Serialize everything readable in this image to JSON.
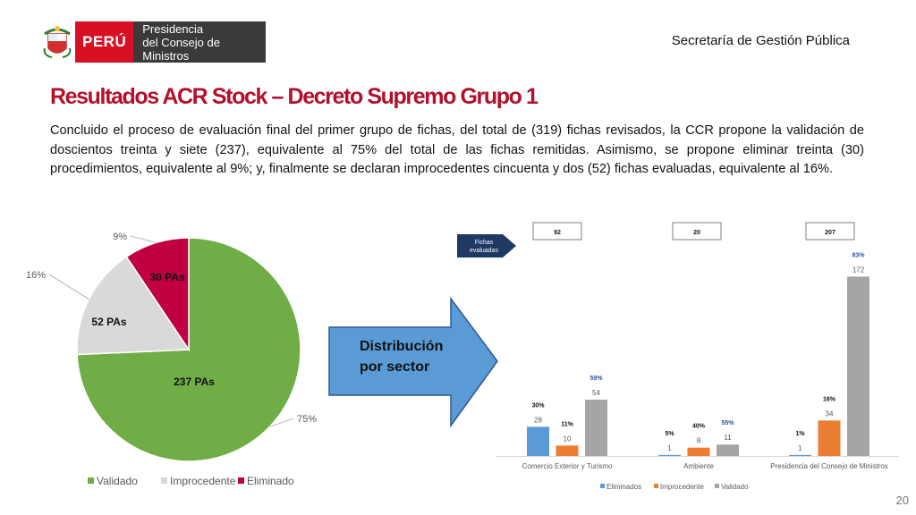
{
  "header": {
    "logo_country": "PERÚ",
    "logo_line1": "Presidencia",
    "logo_line2": "del Consejo de Ministros",
    "secretaria": "Secretaría de Gestión Pública"
  },
  "title": "Resultados ACR Stock – Decreto Supremo Grupo 1",
  "paragraph": "Concluido el proceso de evaluación final del primer grupo de fichas, del total de (319) fichas revisados, la CCR propone la validación de doscientos treinta y siete (237), equivalente al 75% del total de las fichas remitidas. Asimismo,  se  propone eliminar treinta (30) procedimientos, equivalente al 9%; y, finalmente se declaran improcedentes cincuenta y dos (52)  fichas evaluadas, equivalente al 16%.",
  "arrow_label_line1": "Distribución",
  "arrow_label_line2": "por sector",
  "page_number": "20",
  "colors": {
    "validado": "#70ad47",
    "improcedente": "#d9d9d9",
    "eliminado": "#c00040",
    "bar_eliminados": "#5b9bd5",
    "bar_improcedente": "#ed7d31",
    "bar_validado": "#a5a5a5",
    "arrow": "#5b9bd5",
    "callout": "#1f3864",
    "title": "#b2102b"
  },
  "chart_data": [
    {
      "type": "pie",
      "slices": [
        {
          "name": "Validado",
          "value": 237,
          "label": "237 PAs",
          "percent": "75%"
        },
        {
          "name": "Improcedente",
          "value": 52,
          "label": "52 PAs",
          "percent": "16%"
        },
        {
          "name": "Eliminado",
          "value": 30,
          "label": "30 PAs",
          "percent": "9%"
        }
      ],
      "legend_position": "bottom"
    },
    {
      "type": "bar",
      "categories": [
        "Comercio Exterior y Turismo",
        "Ambiente",
        "Presidencia del Consejo de Ministros"
      ],
      "totals": [
        "92",
        "20",
        "207"
      ],
      "callout": "Fichas evaluadas",
      "series": [
        {
          "name": "Eliminados",
          "values": [
            28,
            1,
            1
          ],
          "percents": [
            "30%",
            "5%",
            "1%"
          ]
        },
        {
          "name": "Improcedente",
          "values": [
            10,
            8,
            34
          ],
          "percents": [
            "11%",
            "40%",
            "16%"
          ]
        },
        {
          "name": "Validado",
          "values": [
            54,
            11,
            172
          ],
          "percents": [
            "59%",
            "55%",
            "83%"
          ]
        }
      ],
      "ylim": [
        0,
        180
      ],
      "grid": false,
      "legend_position": "bottom"
    }
  ]
}
